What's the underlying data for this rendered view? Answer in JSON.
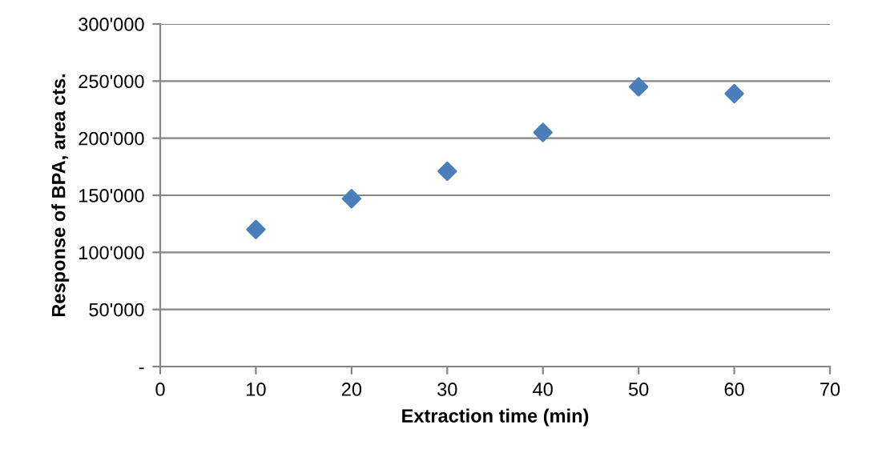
{
  "chart_data": {
    "type": "scatter",
    "xlabel": "Extraction time (min)",
    "ylabel": "Response of BPA, area cts.",
    "x": [
      10,
      20,
      30,
      40,
      50,
      60
    ],
    "series": [
      {
        "color": "#4a7ebb",
        "values": [
          120000,
          147000,
          171000,
          205000,
          245000,
          239000
        ]
      }
    ],
    "xlim": [
      0,
      70
    ],
    "xticks": [
      0,
      10,
      20,
      30,
      40,
      50,
      60,
      70
    ],
    "ylim": [
      0,
      300000
    ],
    "yticks": [
      {
        "value": 0,
        "label": "-"
      },
      {
        "value": 50000,
        "label": "50'000"
      },
      {
        "value": 100000,
        "label": "100'000"
      },
      {
        "value": 150000,
        "label": "150'000"
      },
      {
        "value": 200000,
        "label": "200'000"
      },
      {
        "value": 250000,
        "label": "250'000"
      },
      {
        "value": 300000,
        "label": "300'000"
      }
    ],
    "grid": "y",
    "marker": "diamond",
    "legend": false
  }
}
